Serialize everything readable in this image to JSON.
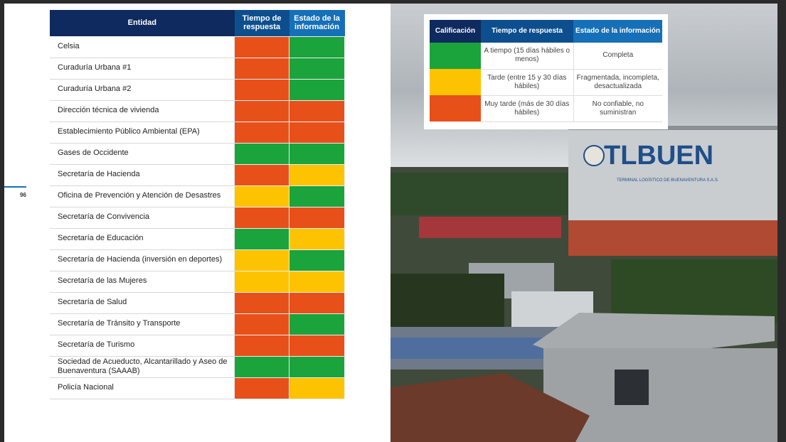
{
  "page_number": "96",
  "colors": {
    "red": "#e8501a",
    "green": "#1ba33c",
    "yellow": "#fdc300"
  },
  "main_table": {
    "headers": {
      "entity": "Entidad",
      "time": "Tiempo de respuesta",
      "info": "Estado de la información"
    },
    "rows": [
      {
        "name": "Celsia",
        "time": "red",
        "info": "green"
      },
      {
        "name": "Curaduría Urbana #1",
        "time": "red",
        "info": "green"
      },
      {
        "name": "Curaduría Urbana #2",
        "time": "red",
        "info": "green"
      },
      {
        "name": "Dirección técnica de vivienda",
        "time": "red",
        "info": "red"
      },
      {
        "name": "Establecimiento Público Ambiental (EPA)",
        "time": "red",
        "info": "red"
      },
      {
        "name": "Gases de Occidente",
        "time": "green",
        "info": "green"
      },
      {
        "name": "Secretaría de Hacienda",
        "time": "red",
        "info": "yellow"
      },
      {
        "name": "Oficina de Prevención y Atención de Desastres",
        "time": "yellow",
        "info": "green"
      },
      {
        "name": "Secretaría de Convivencia",
        "time": "red",
        "info": "red"
      },
      {
        "name": "Secretaría de Educación",
        "time": "green",
        "info": "yellow"
      },
      {
        "name": "Secretaría de Hacienda (inversión en deportes)",
        "time": "yellow",
        "info": "green"
      },
      {
        "name": "Secretaría de las Mujeres",
        "time": "yellow",
        "info": "yellow"
      },
      {
        "name": "Secretaría de Salud",
        "time": "red",
        "info": "red"
      },
      {
        "name": "Secretaría de Tránsito y Transporte",
        "time": "red",
        "info": "green"
      },
      {
        "name": "Secretaría de Turismo",
        "time": "red",
        "info": "red"
      },
      {
        "name": "Sociedad de Acueducto, Alcantarillado y Aseo de Buenaventura (SAAAB)",
        "time": "green",
        "info": "green"
      },
      {
        "name": "Policía Nacional",
        "time": "red",
        "info": "yellow"
      }
    ]
  },
  "legend": {
    "headers": {
      "rating": "Calificación",
      "time": "Tiempo de respuesta",
      "info": "Estado de la información"
    },
    "rows": [
      {
        "color": "green",
        "time": "A tiempo (15 días hábiles o menos)",
        "info": "Completa"
      },
      {
        "color": "yellow",
        "time": "Tarde (entre 15 y 30 días hábiles)",
        "info": "Fragmentada, incompleta, desactualizada"
      },
      {
        "color": "red",
        "time": "Muy tarde (más de 30 días hábiles)",
        "info": "No confiable, no suministran"
      }
    ]
  },
  "photo": {
    "sign": "TLBUEN",
    "sign_sub": "TERMINAL LOGÍSTICO DE BUENAVENTURA S.A.S."
  }
}
